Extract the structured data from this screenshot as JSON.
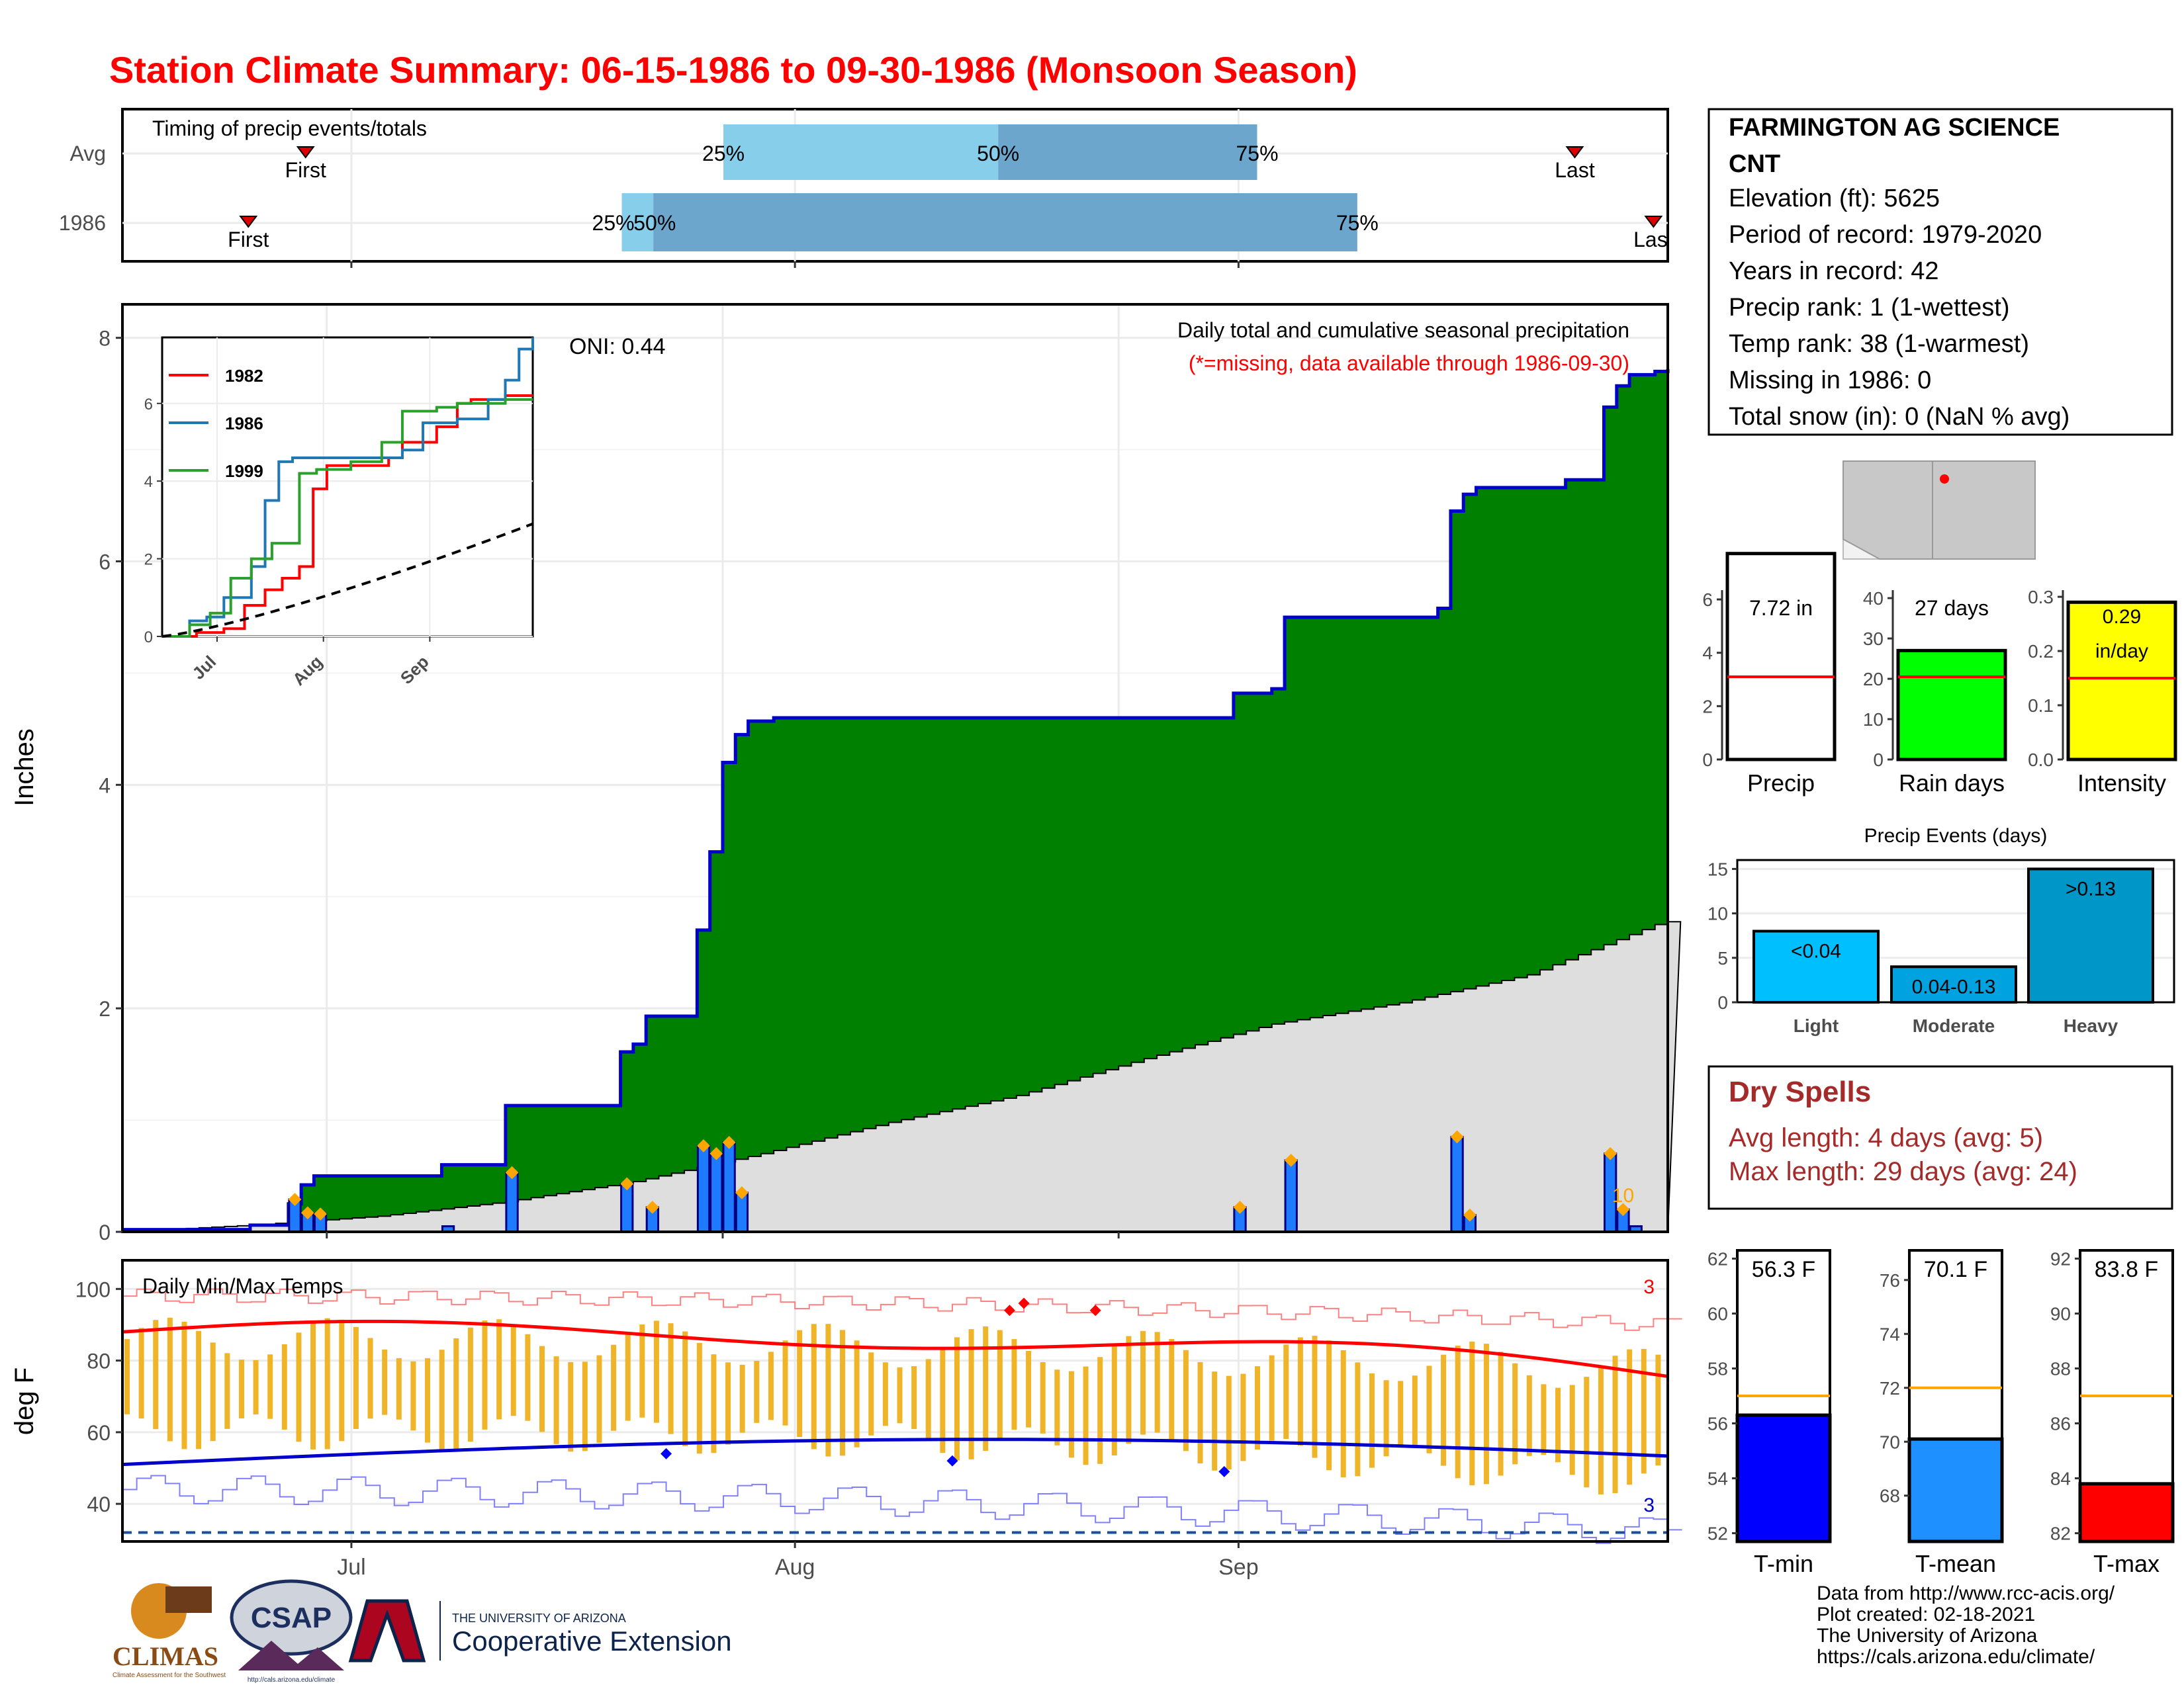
{
  "title": "Station Climate Summary: 06-15-1986 to 09-30-1986 (Monsoon Season)",
  "colors": {
    "title": "#ff0000",
    "station_cum": "#008000",
    "avg_cum": "#dedede",
    "cum_line": "#0000cd",
    "daily_bar": "#1e7bff",
    "tmax_line": "#ff0000",
    "tmin_line": "#0000cd",
    "temp_bar": "#f0b429",
    "dry_spells": "#a52a2a"
  },
  "station": {
    "name_line1": "FARMINGTON AG SCIENCE",
    "name_line2": "CNT",
    "lines": [
      "Elevation (ft): 5625",
      "Period of record: 1979-2020",
      "Years in record: 42",
      "Precip rank: 1 (1-wettest)",
      "Temp rank: 38 (1-warmest)",
      "Missing in 1986: 0",
      "Total snow (in): 0 (NaN % avg)"
    ]
  },
  "timing": {
    "label": "Timing of precip events/totals",
    "rows": [
      "Avg",
      "1986"
    ],
    "avg": {
      "first": "First",
      "last": "Last",
      "p25": "25%",
      "p50": "50%",
      "p75": "75%"
    },
    "y1986": {
      "first": "First",
      "last": "Last",
      "p25": "25%",
      "p50": "50%",
      "p75": "75%"
    }
  },
  "precip_panel": {
    "ylabel": "Inches",
    "oni": "ONI: 0.44",
    "note1": "Daily total and cumulative seasonal precipitation",
    "note2": "(*=missing, data available through 1986-09-30)",
    "offscale": "10",
    "yticks": [
      "0",
      "2",
      "4",
      "6",
      "8"
    ]
  },
  "inset": {
    "legend": [
      "1982",
      "1986",
      "1999"
    ],
    "yticks": [
      "0",
      "2",
      "4",
      "6"
    ],
    "xticks": [
      "Jul",
      "Aug",
      "Sep"
    ]
  },
  "temp_panel": {
    "label": "Daily Min/Max Temps",
    "ylabel": "deg F",
    "yticks": [
      "40",
      "60",
      "80",
      "100"
    ],
    "xticks": [
      "Jul",
      "Aug",
      "Sep"
    ],
    "rec_high_count": "3",
    "rec_low_count": "3"
  },
  "summary_bars": [
    {
      "label": "Precip",
      "value_text": "7.72 in",
      "value": 7.72,
      "avg": 3.1,
      "yticks": [
        "0",
        "2",
        "4",
        "6"
      ],
      "ymax": 6.2
    },
    {
      "label": "Rain days",
      "value_text": "27 days",
      "value": 27,
      "avg": 20.5,
      "yticks": [
        "0",
        "10",
        "20",
        "30",
        "40"
      ],
      "ymax": 41
    },
    {
      "label": "Intensity",
      "value_text_1": "0.29",
      "value_text_2": "in/day",
      "value": 0.29,
      "avg": 0.15,
      "yticks": [
        "0.0",
        "0.1",
        "0.2",
        "0.3"
      ],
      "ymax": 0.305
    }
  ],
  "events": {
    "title": "Precip Events (days)",
    "yticks": [
      "0",
      "5",
      "10",
      "15"
    ],
    "bars": [
      {
        "cat": "Light",
        "label": "<0.04",
        "value": 8
      },
      {
        "cat": "Moderate",
        "label": "0.04-0.13",
        "value": 4
      },
      {
        "cat": "Heavy",
        "label": ">0.13",
        "value": 15
      }
    ]
  },
  "dry_spells": {
    "title": "Dry Spells",
    "line1": "Avg length: 4 days (avg: 5)",
    "line2": "Max length: 29 days (avg: 24)"
  },
  "temp_bars": [
    {
      "label": "T-min",
      "value_text": "56.3 F",
      "value": 56.3,
      "avg": 57.0,
      "ymin": 51.7,
      "ymax": 62.3,
      "yticks": [
        "52",
        "54",
        "56",
        "58",
        "60",
        "62"
      ]
    },
    {
      "label": "T-mean",
      "value_text": "70.1 F",
      "value": 70.1,
      "avg": 72.0,
      "ymin": 66.3,
      "ymax": 77.1,
      "yticks": [
        "68",
        "70",
        "72",
        "74",
        "76"
      ]
    },
    {
      "label": "T-max",
      "value_text": "83.8 F",
      "value": 83.8,
      "avg": 87.0,
      "ymin": 81.7,
      "ymax": 92.3,
      "yticks": [
        "82",
        "84",
        "86",
        "88",
        "90",
        "92"
      ]
    }
  ],
  "credits": [
    "Data from http://www.rcc-acis.org/",
    "Plot created: 02-18-2021",
    "The University of Arizona",
    "https://cals.arizona.edu/climate/"
  ],
  "logos": {
    "climas": "CLIMAS",
    "climas_sub": "Climate Assessment for the Southwest",
    "csap": "CSAP",
    "csap_url": "http://cals.arizona.edu/climate",
    "ua_small": "THE UNIVERSITY OF ARIZONA",
    "ua_big": "Cooperative Extension"
  },
  "chart_data": {
    "type": "area",
    "title": "Daily total and cumulative seasonal precipitation",
    "ylabel": "Inches",
    "xticks": [
      "Jul",
      "Aug",
      "Sep"
    ],
    "ylim": [
      0,
      8.3
    ],
    "cumulative_1986_steps": [
      {
        "day": 0,
        "y": 0.02
      },
      {
        "day": 10,
        "y": 0.06
      },
      {
        "day": 13,
        "y": 0.25
      },
      {
        "day": 14,
        "y": 0.42
      },
      {
        "day": 15,
        "y": 0.5
      },
      {
        "day": 25,
        "y": 0.6
      },
      {
        "day": 30,
        "y": 1.13
      },
      {
        "day": 39,
        "y": 1.61
      },
      {
        "day": 40,
        "y": 1.68
      },
      {
        "day": 41,
        "y": 1.93
      },
      {
        "day": 44,
        "y": 1.93
      },
      {
        "day": 45,
        "y": 2.7
      },
      {
        "day": 46,
        "y": 3.4
      },
      {
        "day": 47,
        "y": 4.2
      },
      {
        "day": 48,
        "y": 4.45
      },
      {
        "day": 49,
        "y": 4.57
      },
      {
        "day": 51,
        "y": 4.6
      },
      {
        "day": 87,
        "y": 4.82
      },
      {
        "day": 90,
        "y": 4.86
      },
      {
        "day": 91,
        "y": 5.5
      },
      {
        "day": 103,
        "y": 5.58
      },
      {
        "day": 104,
        "y": 6.45
      },
      {
        "day": 105,
        "y": 6.6
      },
      {
        "day": 106,
        "y": 6.66
      },
      {
        "day": 112,
        "y": 6.66
      },
      {
        "day": 113,
        "y": 6.73
      },
      {
        "day": 116,
        "y": 7.38
      },
      {
        "day": 117,
        "y": 7.57
      },
      {
        "day": 118,
        "y": 7.67
      },
      {
        "day": 120,
        "y": 7.7
      },
      {
        "day": 121,
        "y": 7.72
      }
    ],
    "average_cumulative": [
      {
        "day": 0,
        "y": 0.0
      },
      {
        "day": 10,
        "y": 0.06
      },
      {
        "day": 20,
        "y": 0.14
      },
      {
        "day": 30,
        "y": 0.27
      },
      {
        "day": 40,
        "y": 0.45
      },
      {
        "day": 50,
        "y": 0.7
      },
      {
        "day": 60,
        "y": 0.98
      },
      {
        "day": 70,
        "y": 1.22
      },
      {
        "day": 80,
        "y": 1.55
      },
      {
        "day": 90,
        "y": 1.86
      },
      {
        "day": 100,
        "y": 2.05
      },
      {
        "day": 110,
        "y": 2.3
      },
      {
        "day": 120,
        "y": 2.75
      },
      {
        "day": 128,
        "y": 2.95
      }
    ],
    "daily_1986": [
      {
        "day": 13,
        "y": 0.29
      },
      {
        "day": 14,
        "y": 0.17
      },
      {
        "day": 15,
        "y": 0.16
      },
      {
        "day": 30,
        "y": 0.53
      },
      {
        "day": 25,
        "y": 0.05
      },
      {
        "day": 39,
        "y": 0.43
      },
      {
        "day": 41,
        "y": 0.22
      },
      {
        "day": 45,
        "y": 0.77
      },
      {
        "day": 46,
        "y": 0.7
      },
      {
        "day": 47,
        "y": 0.8
      },
      {
        "day": 48,
        "y": 0.35
      },
      {
        "day": 87,
        "y": 0.22
      },
      {
        "day": 91,
        "y": 0.64
      },
      {
        "day": 104,
        "y": 0.85
      },
      {
        "day": 105,
        "y": 0.15
      },
      {
        "day": 116,
        "y": 0.7
      },
      {
        "day": 117,
        "y": 0.2
      },
      {
        "day": 118,
        "y": 0.05
      }
    ],
    "inset_series": [
      {
        "name": "1982",
        "color": "#ff0000"
      },
      {
        "name": "1986",
        "color": "#1f77b4"
      },
      {
        "name": "1999",
        "color": "#2ca02c"
      }
    ]
  }
}
